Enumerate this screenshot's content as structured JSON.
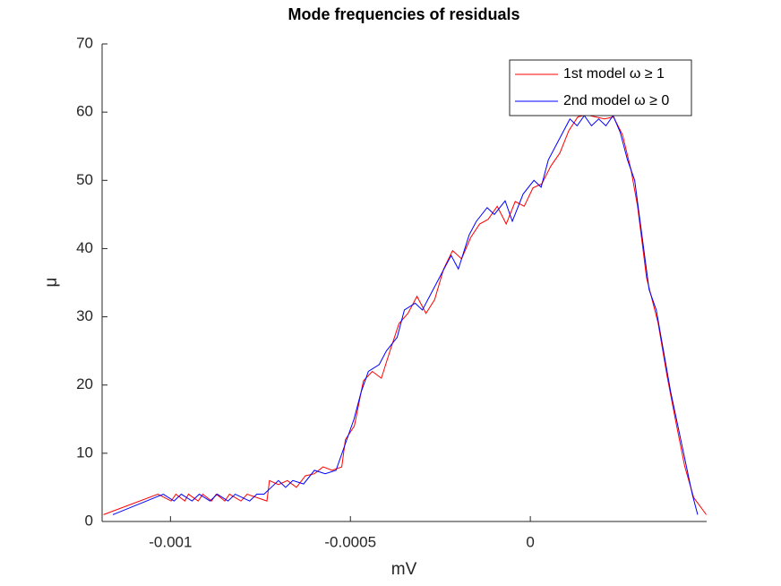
{
  "chart_data": {
    "type": "line",
    "title": "Mode frequencies of residuals",
    "x_label": "mV",
    "y_label": "μ",
    "xlim": [
      -0.00119,
      0.00049
    ],
    "xticks": [
      -0.001,
      -0.0005,
      0
    ],
    "ylim": [
      0,
      70
    ],
    "yticks": [
      0,
      10,
      20,
      30,
      40,
      50,
      60,
      70
    ],
    "grid": false,
    "legend": "upper right",
    "series": [
      {
        "name": "1st model ω ≥ 1",
        "color": "#ff0000",
        "x": [
          -0.001186,
          -0.001035,
          -0.000998,
          -0.000985,
          -0.00096,
          -0.00095,
          -0.000923,
          -0.00091,
          -0.000886,
          -0.000873,
          -0.000849,
          -0.000836,
          -0.000804,
          -0.000787,
          -0.000732,
          -0.000725,
          -0.0007,
          -0.000675,
          -0.00065,
          -0.000625,
          -0.0006,
          -0.000576,
          -0.000551,
          -0.000524,
          -0.000514,
          -0.000489,
          -0.000464,
          -0.000439,
          -0.000414,
          -0.00039,
          -0.000365,
          -0.00034,
          -0.000315,
          -0.00029,
          -0.000266,
          -0.000241,
          -0.000216,
          -0.000191,
          -0.000166,
          -0.000141,
          -0.000117,
          -9.2e-05,
          -6.7e-05,
          -4.2e-05,
          -1.7e-05,
          7.4e-06,
          3.2e-05,
          5.7e-05,
          8.2e-05,
          0.000107,
          0.000132,
          0.000156,
          0.000181,
          0.000206,
          0.000231,
          0.000256,
          0.00028,
          0.000298,
          0.000323,
          0.000355,
          0.00038,
          0.000404,
          0.000429,
          0.000454,
          0.000489
        ],
        "values": [
          1,
          4,
          3,
          4,
          3,
          4,
          3,
          4,
          3,
          4,
          3,
          4,
          3,
          4,
          3,
          6,
          5.4,
          6,
          5,
          6.7,
          7,
          8,
          7.5,
          8,
          12,
          14,
          20.6,
          22,
          21,
          25,
          29,
          30.5,
          33,
          30.5,
          32.5,
          37,
          39.7,
          38.5,
          41.6,
          43.6,
          44.3,
          46.2,
          43.6,
          46.9,
          46.2,
          48.9,
          49.5,
          52.1,
          54,
          57.3,
          59.3,
          59.6,
          59.3,
          59,
          59.3,
          56.7,
          51.5,
          46.2,
          35.7,
          29.1,
          21.3,
          14.7,
          8.1,
          3.5,
          1
        ]
      },
      {
        "name": "2nd model ω ≥ 0",
        "color": "#0000ff",
        "x": [
          -0.00116,
          -0.00102,
          -0.00099,
          -0.00097,
          -0.00094,
          -0.00092,
          -0.00089,
          -0.00087,
          -0.00084,
          -0.00082,
          -0.00078,
          -0.00076,
          -0.00074,
          -0.00072,
          -0.0007,
          -0.00068,
          -0.00066,
          -0.00063,
          -0.0006,
          -0.00057,
          -0.00054,
          -0.00053,
          -0.00051,
          -0.00049,
          -0.00047,
          -0.00045,
          -0.00042,
          -0.0004,
          -0.00037,
          -0.00035,
          -0.00032,
          -0.0003,
          -0.00027,
          -0.00025,
          -0.00022,
          -0.0002,
          -0.00017,
          -0.00015,
          -0.00012,
          -0.0001,
          -7e-05,
          -5e-05,
          -2e-05,
          1e-05,
          3e-05,
          5e-05,
          7e-05,
          9e-05,
          0.00011,
          0.00013,
          0.00015,
          0.00017,
          0.00019,
          0.00021,
          0.00023,
          0.00025,
          0.00027,
          0.00029,
          0.00031,
          0.00033,
          0.00035,
          0.00037,
          0.00039,
          0.00041,
          0.00043,
          0.00045,
          0.000465
        ],
        "values": [
          1,
          4,
          3,
          4,
          3,
          4,
          3,
          4,
          3,
          4,
          3,
          4,
          4,
          5,
          6,
          5,
          6,
          5.5,
          7.5,
          7,
          7.5,
          9,
          12,
          15,
          19,
          22,
          23,
          25,
          27,
          31,
          32,
          31,
          34,
          36,
          39,
          37,
          42,
          44,
          46,
          45,
          47,
          44,
          48,
          50,
          49,
          53,
          55,
          57,
          59,
          58,
          59.5,
          58,
          59,
          58,
          59.5,
          57,
          53,
          50,
          42,
          34,
          31,
          25,
          19,
          14,
          9,
          4,
          1
        ]
      }
    ]
  }
}
